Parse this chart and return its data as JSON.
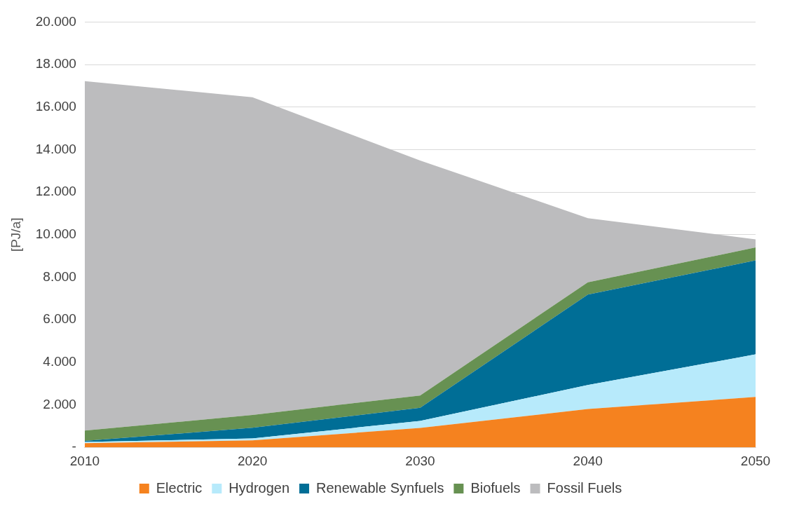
{
  "chart_data": {
    "type": "area",
    "stacked": true,
    "ylabel": "[PJ/a]",
    "categories": [
      "2010",
      "2020",
      "2030",
      "2040",
      "2050"
    ],
    "series": [
      {
        "name": "Electric",
        "color": "#f5821f",
        "values": [
          200,
          330,
          910,
          1800,
          2370
        ]
      },
      {
        "name": "Hydrogen",
        "color": "#b7eafb",
        "values": [
          50,
          90,
          330,
          1130,
          2000
        ]
      },
      {
        "name": "Renewable Synfuels",
        "color": "#006e96",
        "values": [
          50,
          500,
          620,
          4250,
          4420
        ]
      },
      {
        "name": "Biofuels",
        "color": "#679152",
        "values": [
          490,
          600,
          580,
          580,
          610
        ]
      },
      {
        "name": "Fossil Fuels",
        "color": "#bcbcbe",
        "values": [
          16430,
          14940,
          11050,
          3020,
          380
        ]
      }
    ],
    "ylim": [
      0,
      20000
    ],
    "yticks": [
      {
        "value": 0,
        "label": "-"
      },
      {
        "value": 2000,
        "label": "2.000"
      },
      {
        "value": 4000,
        "label": "4.000"
      },
      {
        "value": 6000,
        "label": "6.000"
      },
      {
        "value": 8000,
        "label": "8.000"
      },
      {
        "value": 10000,
        "label": "10.000"
      },
      {
        "value": 12000,
        "label": "12.000"
      },
      {
        "value": 14000,
        "label": "14.000"
      },
      {
        "value": 16000,
        "label": "16.000"
      },
      {
        "value": 18000,
        "label": "18.000"
      },
      {
        "value": 20000,
        "label": "20.000"
      }
    ],
    "grid": "y",
    "legend": "bottom",
    "marker": "none"
  }
}
